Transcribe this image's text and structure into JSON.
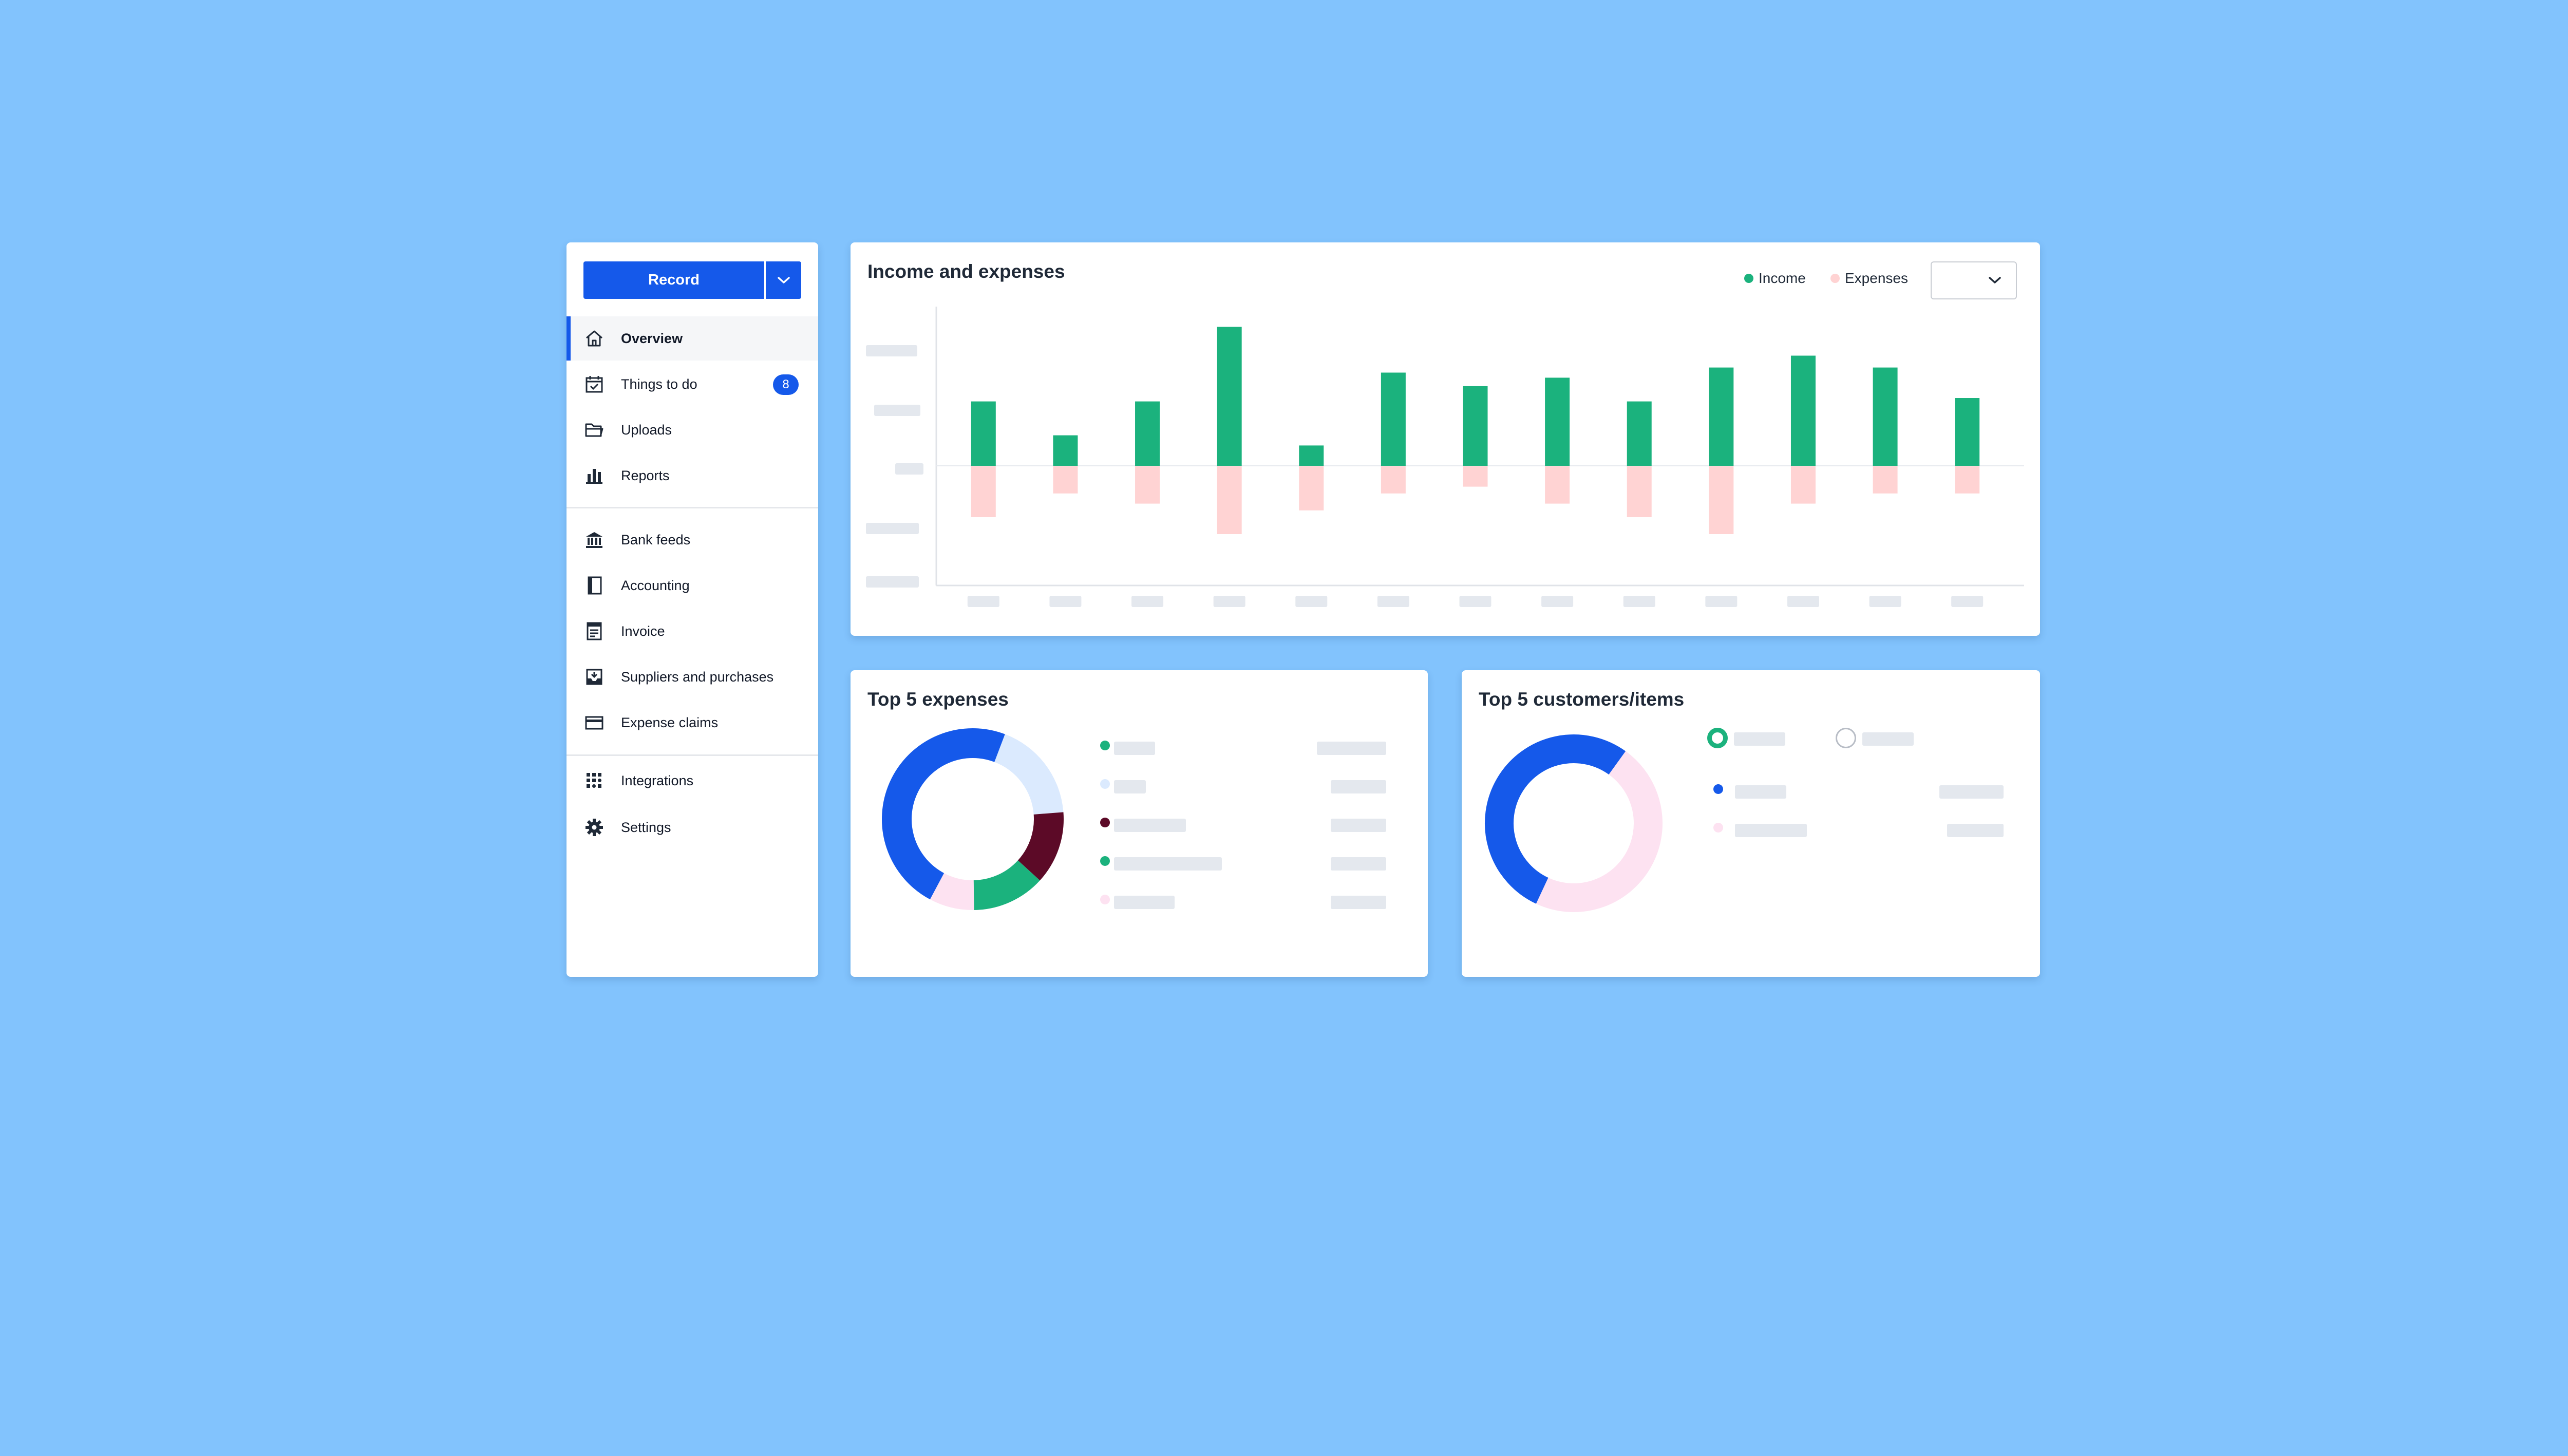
{
  "sidebar": {
    "record_label": "Record",
    "items": [
      {
        "label": "Overview",
        "icon": "home-icon",
        "active": true
      },
      {
        "label": "Things to do",
        "icon": "calendar-check-icon",
        "badge": "8"
      },
      {
        "label": "Uploads",
        "icon": "folder-icon"
      },
      {
        "label": "Reports",
        "icon": "bar-chart-icon"
      },
      {
        "label": "Bank feeds",
        "icon": "bank-icon"
      },
      {
        "label": "Accounting",
        "icon": "book-icon"
      },
      {
        "label": "Invoice",
        "icon": "invoice-icon"
      },
      {
        "label": "Suppliers and purchases",
        "icon": "inbox-icon"
      },
      {
        "label": "Expense claims",
        "icon": "credit-card-icon"
      },
      {
        "label": "Integrations",
        "icon": "grid-icon"
      },
      {
        "label": "Settings",
        "icon": "gear-icon"
      }
    ]
  },
  "income_chart": {
    "title": "Income and expenses",
    "legend": [
      {
        "label": "Income",
        "color": "#1bb27d"
      },
      {
        "label": "Expenses",
        "color": "#ffd3d3"
      }
    ]
  },
  "expenses_card": {
    "title": "Top 5 expenses"
  },
  "customers_card": {
    "title": "Top 5 customers/items"
  },
  "colors": {
    "accent": "#1559ea",
    "income": "#1bb27d",
    "expenses": "#ffd3d3",
    "background": "#82c3fd"
  },
  "chart_data": [
    {
      "type": "bar",
      "title": "Income and expenses",
      "categories": [
        "",
        "",
        "",
        "",
        "",
        "",
        "",
        "",
        "",
        "",
        "",
        "",
        ""
      ],
      "series": [
        {
          "name": "Income",
          "values": [
            38,
            18,
            38,
            82,
            12,
            55,
            47,
            52,
            38,
            58,
            65,
            58,
            40
          ]
        },
        {
          "name": "Expenses",
          "values": [
            -30,
            -16,
            -22,
            -40,
            -26,
            -16,
            -12,
            -22,
            -30,
            -40,
            -22,
            -16,
            -16
          ]
        }
      ],
      "ylim": [
        -70,
        90
      ],
      "grid": false,
      "legend_position": "top-right"
    },
    {
      "type": "pie",
      "title": "Top 5 expenses",
      "slices": [
        {
          "value": 48,
          "color": "#1559ea"
        },
        {
          "value": 18,
          "color": "#dbeafe"
        },
        {
          "value": 13,
          "color": "#5c0a27"
        },
        {
          "value": 13,
          "color": "#1bb27d"
        },
        {
          "value": 8,
          "color": "#fde2f1"
        }
      ]
    },
    {
      "type": "pie",
      "title": "Top 5 customers/items",
      "slices": [
        {
          "value": 53,
          "color": "#1559ea"
        },
        {
          "value": 47,
          "color": "#fde2f1"
        }
      ]
    }
  ]
}
